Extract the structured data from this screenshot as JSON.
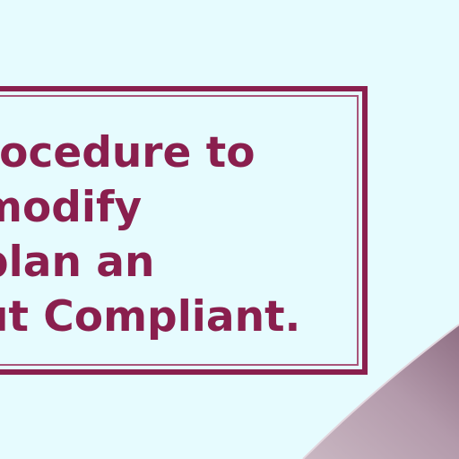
{
  "slide": {
    "lines": [
      "rocedure to",
      "modify",
      "plan an",
      "ut Compliant."
    ]
  },
  "colors": {
    "background": "#e6fbfe",
    "accent": "#8a1f4e",
    "corner_shape": "#b49aab"
  }
}
